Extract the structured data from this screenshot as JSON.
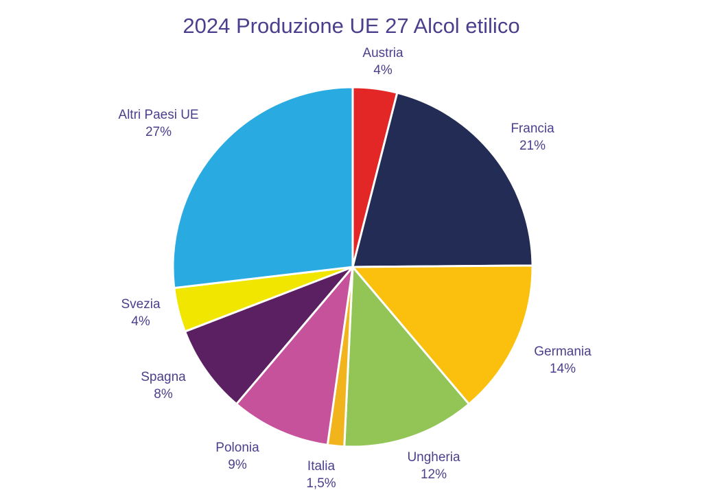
{
  "chart_data": {
    "type": "pie",
    "title": "2024 Produzione UE 27 Alcol etilico",
    "start_angle_deg": 0,
    "direction": "clockwise",
    "slices": [
      {
        "label": "Austria",
        "value": 4,
        "value_label": "4%",
        "color": "#e32726"
      },
      {
        "label": "Francia",
        "value": 21,
        "value_label": "21%",
        "color": "#222c54"
      },
      {
        "label": "Germania",
        "value": 14,
        "value_label": "14%",
        "color": "#fbc00e"
      },
      {
        "label": "Ungheria",
        "value": 12,
        "value_label": "12%",
        "color": "#93c456"
      },
      {
        "label": "Italia",
        "value": 1.5,
        "value_label": "1,5%",
        "color": "#f2b41c"
      },
      {
        "label": "Polonia",
        "value": 9,
        "value_label": "9%",
        "color": "#c5529a"
      },
      {
        "label": "Spagna",
        "value": 8,
        "value_label": "8%",
        "color": "#5b2061"
      },
      {
        "label": "Svezia",
        "value": 4,
        "value_label": "4%",
        "color": "#f1e600"
      },
      {
        "label": "Altri Paesi UE",
        "value": 27,
        "value_label": "27%",
        "color": "#29abe2"
      }
    ]
  }
}
